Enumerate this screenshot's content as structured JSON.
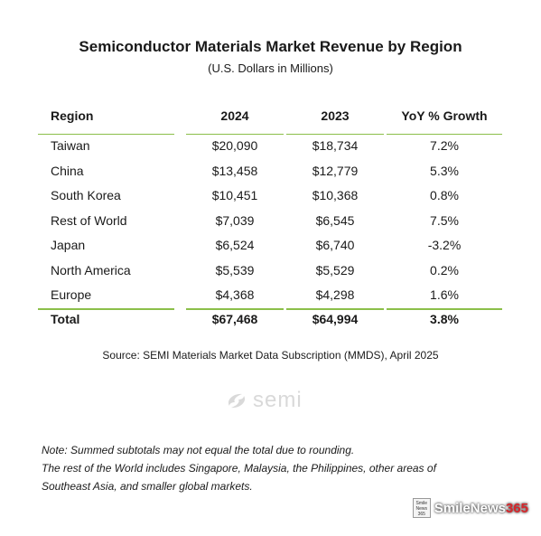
{
  "title": "Semiconductor Materials Market Revenue by Region",
  "subtitle": "(U.S. Dollars in Millions)",
  "headers": [
    "Region",
    "2024",
    "2023",
    "YoY % Growth"
  ],
  "rows": [
    {
      "region": "Taiwan",
      "y2024": "$20,090",
      "y2023": "$18,734",
      "yoy": "7.2%"
    },
    {
      "region": "China",
      "y2024": "$13,458",
      "y2023": "$12,779",
      "yoy": "5.3%"
    },
    {
      "region": "South Korea",
      "y2024": "$10,451",
      "y2023": "$10,368",
      "yoy": "0.8%"
    },
    {
      "region": "Rest of World",
      "y2024": "$7,039",
      "y2023": "$6,545",
      "yoy": "7.5%"
    },
    {
      "region": "Japan",
      "y2024": "$6,524",
      "y2023": "$6,740",
      "yoy": "-3.2%"
    },
    {
      "region": "North America",
      "y2024": "$5,539",
      "y2023": "$5,529",
      "yoy": "0.2%"
    },
    {
      "region": "Europe",
      "y2024": "$4,368",
      "y2023": "$4,298",
      "yoy": "1.6%"
    }
  ],
  "total": {
    "region": "Total",
    "y2024": "$67,468",
    "y2023": "$64,994",
    "yoy": "3.8%"
  },
  "source": "Source: SEMI Materials Market Data Subscription (MMDS), April 2025",
  "logo_text": "semi",
  "notes": [
    "Note: Summed subtotals may not equal the total due to rounding.",
    "The rest of the World includes Singapore, Malaysia, the Philippines, other areas of",
    "Southeast Asia, and smaller global markets."
  ],
  "watermark": {
    "box_lines": [
      "Smile",
      "News",
      "365"
    ],
    "name": "SmileNews",
    "suffix": "365"
  },
  "colors": {
    "rule": "#8bbf4a",
    "logo": "#d9d9d9",
    "watermark_accent": "#d8262b"
  },
  "chart_data": {
    "type": "table",
    "title": "Semiconductor Materials Market Revenue by Region",
    "subtitle": "(U.S. Dollars in Millions)",
    "columns": [
      "Region",
      "2024",
      "2023",
      "YoY % Growth"
    ],
    "categories": [
      "Taiwan",
      "China",
      "South Korea",
      "Rest of World",
      "Japan",
      "North America",
      "Europe"
    ],
    "series": [
      {
        "name": "2024",
        "values": [
          20090,
          13458,
          10451,
          7039,
          6524,
          5539,
          4368
        ]
      },
      {
        "name": "2023",
        "values": [
          18734,
          12779,
          10368,
          6545,
          6740,
          5529,
          4298
        ]
      },
      {
        "name": "YoY % Growth",
        "values": [
          7.2,
          5.3,
          0.8,
          7.5,
          -3.2,
          0.2,
          1.6
        ]
      }
    ],
    "totals": {
      "2024": 67468,
      "2023": 64994,
      "YoY % Growth": 3.8
    }
  }
}
